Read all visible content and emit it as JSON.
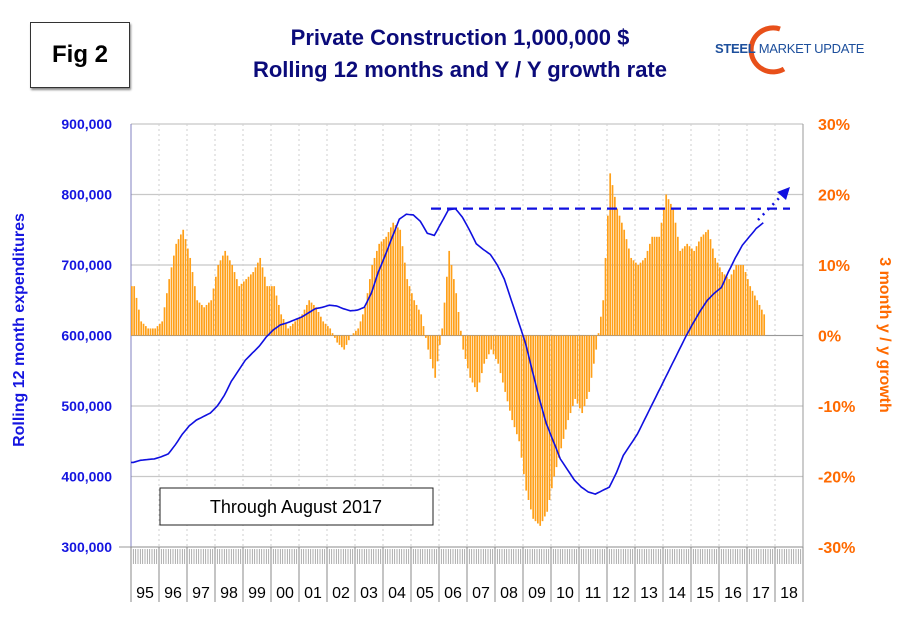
{
  "figure_label": "Fig 2",
  "title_line1": "Private Construction 1,000,000 $",
  "title_line2": "Rolling 12 months and Y / Y growth rate",
  "logo": {
    "bold": "STEEL",
    "rest": " MARKET UPDATE"
  },
  "annotation": "Through August 2017",
  "colors": {
    "line": "#1010e0",
    "bars": "#ffa019",
    "left_axis": "#1515e0",
    "right_axis": "#ff6a00",
    "title": "#0b0b7a"
  },
  "chart_data": {
    "type": "bar+line",
    "title": "Private Construction 1,000,000 $ Rolling 12 months and Y / Y growth rate",
    "ylabel": "Rolling 12 month expenditures",
    "ylabel_right": "3 month y / y growth",
    "ylim": [
      300000,
      900000
    ],
    "ylim_right": [
      -30,
      30
    ],
    "yticks": [
      "300,000",
      "400,000",
      "500,000",
      "600,000",
      "700,000",
      "800,000",
      "900,000"
    ],
    "yticks_right": [
      "-30%",
      "-20%",
      "-10%",
      "0%",
      "10%",
      "20%",
      "30%"
    ],
    "xticks": [
      "95",
      "96",
      "97",
      "98",
      "99",
      "00",
      "01",
      "02",
      "03",
      "04",
      "05",
      "06",
      "07",
      "08",
      "09",
      "10",
      "11",
      "12",
      "13",
      "14",
      "15",
      "16",
      "17",
      "18"
    ],
    "grid": true,
    "x_quarters_start": "1995 Q1",
    "x_quarters_end": "2017 Q3",
    "series": [
      {
        "type": "line",
        "axis": "left",
        "unit": "thousand $",
        "values": [
          420,
          423,
          424,
          425,
          428,
          432,
          445,
          460,
          472,
          480,
          485,
          490,
          500,
          515,
          535,
          550,
          565,
          575,
          585,
          598,
          608,
          615,
          618,
          622,
          626,
          632,
          638,
          640,
          643,
          642,
          638,
          635,
          636,
          640,
          660,
          690,
          714,
          740,
          765,
          772,
          771,
          762,
          745,
          742,
          760,
          778,
          780,
          768,
          750,
          730,
          722,
          715,
          700,
          680,
          650,
          620,
          590,
          550,
          510,
          475,
          450,
          425,
          410,
          395,
          385,
          378,
          375,
          380,
          385,
          405,
          430,
          445,
          460,
          480,
          500,
          520,
          540,
          560,
          580,
          600,
          618,
          635,
          650,
          660,
          668,
          690,
          710,
          728,
          740,
          752,
          760
        ]
      },
      {
        "type": "bar",
        "axis": "right",
        "unit": "%",
        "values": [
          7,
          2,
          1,
          1,
          2,
          8,
          13,
          15,
          11,
          5,
          4,
          5,
          10,
          12,
          10,
          7,
          8,
          9,
          11,
          7,
          7,
          3,
          1,
          2,
          3,
          5,
          4,
          2,
          1,
          -1,
          -2,
          0,
          1,
          4,
          10,
          13,
          14,
          16,
          15,
          8,
          5,
          3,
          -2,
          -6,
          1,
          12,
          6,
          -2,
          -6,
          -8,
          -4,
          -2,
          -4,
          -8,
          -12,
          -15,
          -22,
          -26,
          -27,
          -25,
          -20,
          -16,
          -12,
          -9,
          -11,
          -8,
          -2,
          5,
          23,
          18,
          15,
          11,
          10,
          11,
          14,
          14,
          20,
          18,
          12,
          13,
          12,
          14,
          15,
          11,
          9,
          8,
          10,
          10,
          7,
          5,
          3
        ]
      }
    ],
    "reference_line": {
      "value": 780000,
      "style": "dashed"
    },
    "trend_arrow": "dotted arrow pointing up-right"
  }
}
